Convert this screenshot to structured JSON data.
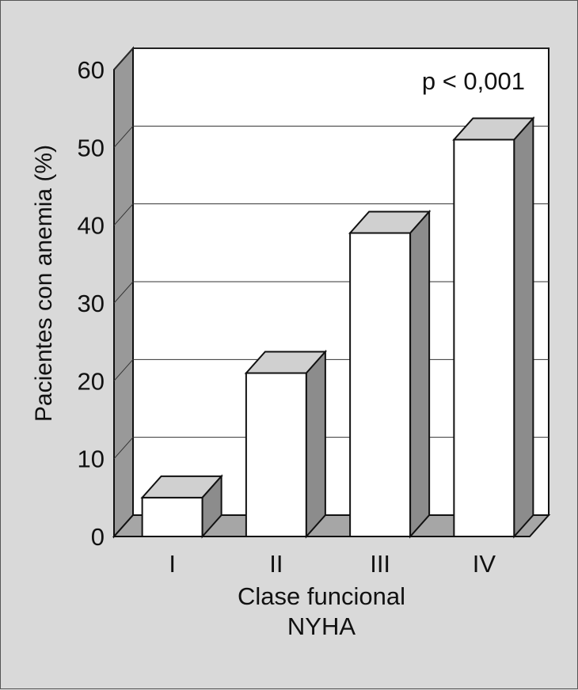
{
  "chart_data": {
    "type": "bar",
    "categories": [
      "I",
      "II",
      "III",
      "IV"
    ],
    "values": [
      5,
      21,
      39,
      51
    ],
    "ylabel": "Pacientes con anemia (%)",
    "xlabel_lines": [
      "Clase funcional",
      "NYHA"
    ],
    "ylim": [
      0,
      60
    ],
    "yticks": [
      0,
      10,
      20,
      30,
      40,
      50,
      60
    ],
    "grid": true,
    "annotation": "p < 0,001",
    "colors": {
      "background": "#d9d9d9",
      "plot_wall": "#ffffff",
      "bar_front": "#ffffff",
      "bar_top": "#d0d0d0",
      "bar_side": "#8c8c8c",
      "floor": "#a6a6a6",
      "side_wall": "#999999",
      "gridline": "#333333"
    }
  }
}
